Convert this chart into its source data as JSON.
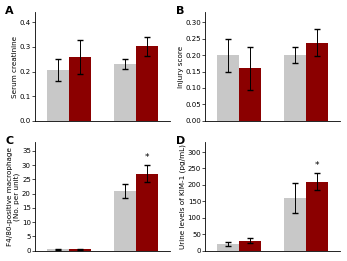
{
  "panel_A": {
    "title": "A",
    "ylabel": "Serum creatinine",
    "ylim": [
      0.0,
      0.44
    ],
    "yticks": [
      0.0,
      0.1,
      0.2,
      0.3,
      0.4
    ],
    "ytick_labels": [
      "0.0",
      "0.1",
      "0.2",
      "0.3",
      "0.4"
    ],
    "gray_vals": [
      0.205,
      0.232
    ],
    "dark_vals": [
      0.258,
      0.302
    ],
    "gray_err": [
      0.045,
      0.02
    ],
    "dark_err": [
      0.07,
      0.04
    ],
    "star": [
      false,
      false
    ]
  },
  "panel_B": {
    "title": "B",
    "ylabel": "Injury score",
    "ylim": [
      0.0,
      0.33
    ],
    "yticks": [
      0.0,
      0.05,
      0.1,
      0.15,
      0.2,
      0.25,
      0.3
    ],
    "ytick_labels": [
      "0.00",
      "0.05",
      "0.10",
      "0.15",
      "0.20",
      "0.25",
      "0.30"
    ],
    "gray_vals": [
      0.2,
      0.2
    ],
    "dark_vals": [
      0.16,
      0.238
    ],
    "gray_err": [
      0.05,
      0.025
    ],
    "dark_err": [
      0.065,
      0.04
    ],
    "star": [
      false,
      false
    ]
  },
  "panel_C": {
    "title": "C",
    "ylabel": "F4/80-positive macrophage\n(No. per unit)",
    "ylim": [
      0,
      38
    ],
    "yticks": [
      0,
      5,
      10,
      15,
      20,
      25,
      30,
      35
    ],
    "ytick_labels": [
      "0",
      "5",
      "10",
      "15",
      "20",
      "25",
      "30",
      "35"
    ],
    "gray_vals": [
      0.4,
      21.0
    ],
    "dark_vals": [
      0.4,
      27.0
    ],
    "gray_err": [
      0.2,
      2.5
    ],
    "dark_err": [
      0.2,
      3.0
    ],
    "star": [
      false,
      true
    ]
  },
  "panel_D": {
    "title": "D",
    "ylabel": "Urine levels of KIM-1 (pg/mL)",
    "ylim": [
      0,
      330
    ],
    "yticks": [
      0,
      50,
      100,
      150,
      200,
      250,
      300
    ],
    "ytick_labels": [
      "0",
      "50",
      "100",
      "150",
      "200",
      "250",
      "300"
    ],
    "gray_vals": [
      20,
      160
    ],
    "dark_vals": [
      30,
      210
    ],
    "gray_err": [
      5,
      45
    ],
    "dark_err": [
      8,
      25
    ],
    "star": [
      false,
      true
    ]
  },
  "gray_color": "#c8c8c8",
  "dark_color": "#8b0000",
  "bar_width": 0.28,
  "group_positions": [
    0.0,
    0.85
  ],
  "capsize": 2,
  "elinewidth": 0.7,
  "ecolor": "black",
  "label_fontsize": 5.2,
  "tick_fontsize": 5,
  "title_fontsize": 8,
  "star_fontsize": 6.5
}
